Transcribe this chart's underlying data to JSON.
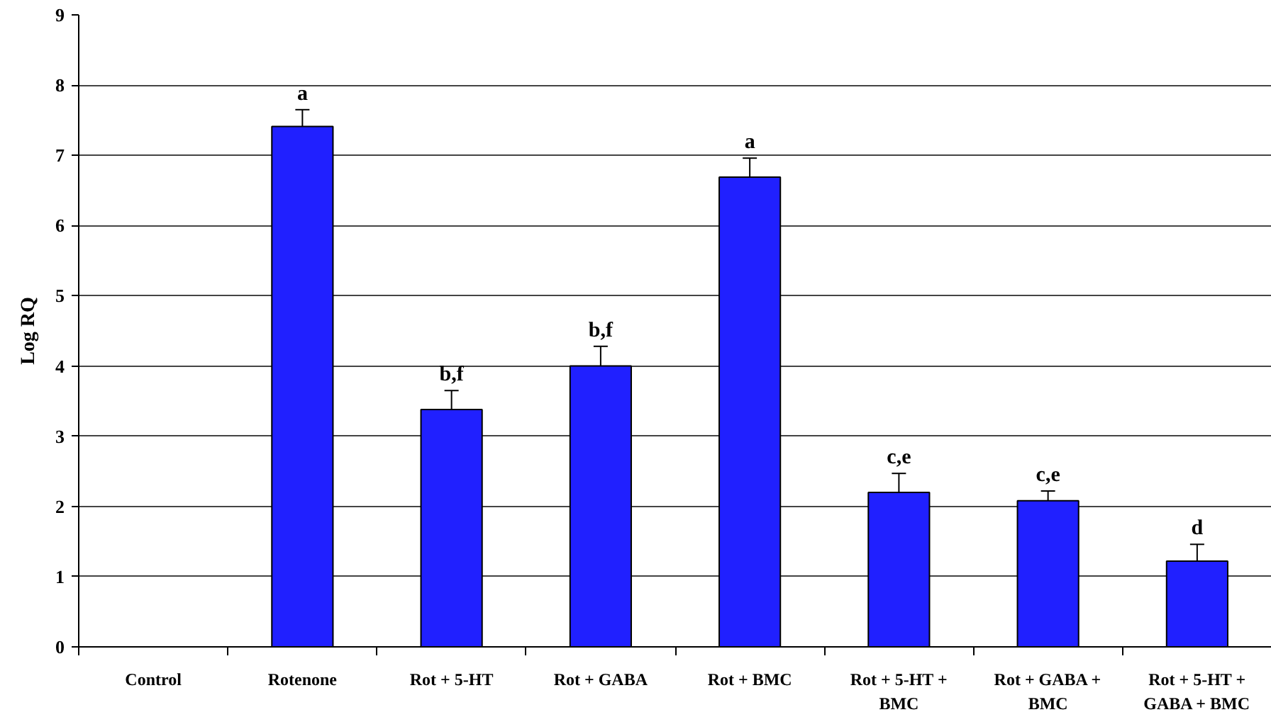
{
  "chart_data": {
    "type": "bar",
    "ylabel": "Log RQ",
    "categories": [
      "Control",
      "Rotenone",
      "Rot + 5-HT",
      "Rot + GABA",
      "Rot + BMC",
      "Rot + 5-HT + BMC",
      "Rot + GABA + BMC",
      "Rot + 5-HT + GABA + BMC"
    ],
    "values": [
      0,
      7.41,
      3.38,
      4.0,
      6.69,
      2.2,
      2.08,
      1.22
    ],
    "errors": [
      null,
      0.24,
      0.27,
      0.28,
      0.27,
      0.27,
      0.14,
      0.24
    ],
    "color": "#2020ff",
    "ylim": [
      0,
      9
    ],
    "yticks": [
      0,
      1,
      2,
      3,
      4,
      5,
      6,
      7,
      8,
      9
    ],
    "grid": "y",
    "annotations": [
      {
        "text": "a",
        "x": "Rotenone",
        "y": 7.65
      },
      {
        "text": "b,f",
        "x": "Rot + 5-HT",
        "y": 3.65
      },
      {
        "text": "b,f",
        "x": "Rot + GABA",
        "y": 4.28
      },
      {
        "text": "a",
        "x": "Rot + BMC",
        "y": 6.96
      },
      {
        "text": "c,e",
        "x": "Rot + 5-HT + BMC",
        "y": 2.47
      },
      {
        "text": "c,e",
        "x": "Rot + GABA + BMC",
        "y": 2.22
      },
      {
        "text": "d",
        "x": "Rot + 5-HT + GABA + BMC",
        "y": 1.46
      }
    ]
  }
}
